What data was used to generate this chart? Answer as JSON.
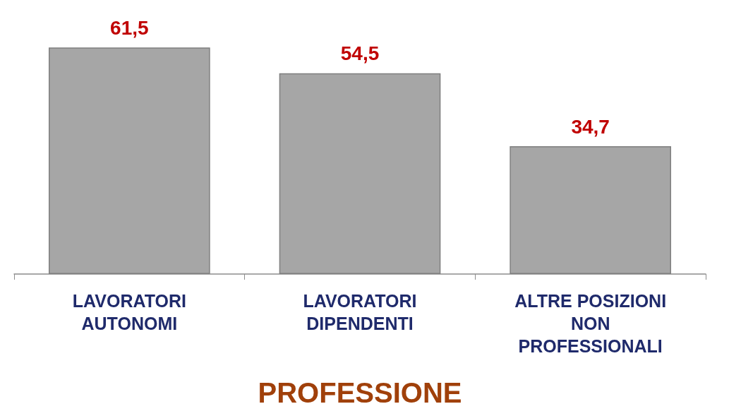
{
  "chart_data": {
    "type": "bar",
    "xlabel": "PROFESSIONE",
    "categories": [
      "LAVORATORI\nAUTONOMI",
      "LAVORATORI\nDIPENDENTI",
      "ALTRE POSIZIONI\nNON\nPROFESSIONALI"
    ],
    "values": [
      61.5,
      54.5,
      34.7
    ],
    "value_labels": [
      "61,5",
      "54,5",
      "34,7"
    ],
    "color": "#a6a6a6",
    "grid": false
  }
}
